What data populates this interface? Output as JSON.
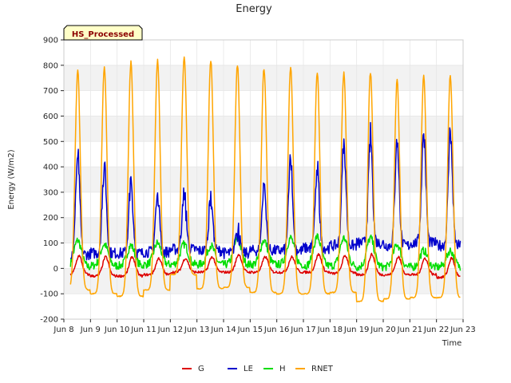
{
  "chart_data": {
    "type": "line",
    "title": "Energy",
    "xlabel": "Time",
    "ylabel": "Energy (W/m2)",
    "badge": "HS_Processed",
    "xlim": [
      8,
      23
    ],
    "ylim": [
      -200,
      900
    ],
    "yticks": [
      -200,
      -100,
      0,
      100,
      200,
      300,
      400,
      500,
      600,
      700,
      800,
      900
    ],
    "xticks": [
      {
        "value": 8,
        "label": "Jun 8"
      },
      {
        "value": 9,
        "label": "Jun 9"
      },
      {
        "value": 10,
        "label": "Jun 10"
      },
      {
        "value": 11,
        "label": "Jun 11"
      },
      {
        "value": 12,
        "label": "Jun 12"
      },
      {
        "value": 13,
        "label": "Jun 13"
      },
      {
        "value": 14,
        "label": "Jun 14"
      },
      {
        "value": 15,
        "label": "Jun 15"
      },
      {
        "value": 16,
        "label": "Jun 16"
      },
      {
        "value": 17,
        "label": "Jun 17"
      },
      {
        "value": 18,
        "label": "Jun 18"
      },
      {
        "value": 19,
        "label": "Jun 19"
      },
      {
        "value": 20,
        "label": "Jun 20"
      },
      {
        "value": 21,
        "label": "Jun 21"
      },
      {
        "value": 22,
        "label": "Jun 22"
      },
      {
        "value": 23,
        "label": "Jun 23"
      }
    ],
    "x_data_start": 8.25,
    "x_data_end": 22.9,
    "colors": {
      "G": "#dd0000",
      "LE": "#0000cc",
      "H": "#00dd00",
      "RNET": "#ffa500"
    },
    "legend_position": "bottom",
    "band_fill": "#f2f2f2",
    "series": [
      {
        "name": "RNET",
        "night_values": [
          -85,
          -100,
          -110,
          -85,
          -25,
          -80,
          -75,
          -95,
          -100,
          -100,
          -95,
          -130,
          -120,
          -115,
          -115
        ],
        "peaks": [
          775,
          795,
          810,
          820,
          835,
          822,
          800,
          790,
          790,
          770,
          770,
          775,
          740,
          760
        ]
      },
      {
        "name": "LE",
        "night_values": [
          55,
          60,
          60,
          65,
          75,
          70,
          60,
          70,
          70,
          80,
          90,
          100,
          90,
          100,
          90
        ],
        "peaks": [
          440,
          410,
          335,
          300,
          290,
          280,
          160,
          325,
          420,
          380,
          500,
          515,
          510,
          540
        ]
      },
      {
        "name": "H",
        "night_values": [
          5,
          10,
          10,
          15,
          15,
          15,
          15,
          15,
          15,
          10,
          10,
          5,
          5,
          5,
          5
        ],
        "peaks": [
          110,
          95,
          90,
          100,
          95,
          90,
          115,
          110,
          120,
          125,
          120,
          120,
          95,
          70
        ]
      },
      {
        "name": "G",
        "night_values": [
          -25,
          -30,
          -30,
          -25,
          -15,
          -15,
          -15,
          -15,
          -15,
          -15,
          -20,
          -25,
          -25,
          -25,
          -35
        ],
        "peaks": [
          50,
          45,
          45,
          40,
          40,
          45,
          55,
          45,
          45,
          55,
          50,
          55,
          45,
          40
        ]
      }
    ]
  }
}
